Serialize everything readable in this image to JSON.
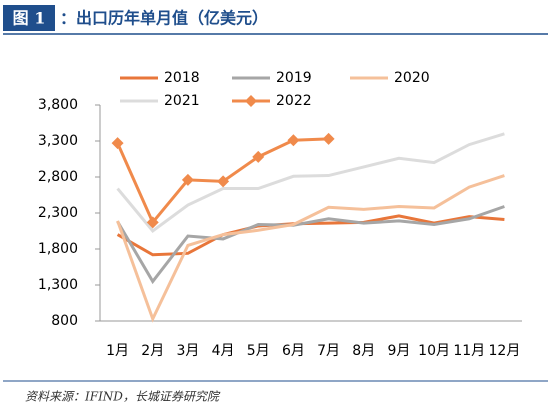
{
  "chart_data": {
    "type": "line",
    "title_label": "图 1",
    "title": "：出口历年单月值（亿美元）",
    "source": "资料来源：IFIND，长城证券研究院",
    "categories": [
      "1月",
      "2月",
      "3月",
      "4月",
      "5月",
      "6月",
      "7月",
      "8月",
      "9月",
      "10月",
      "11月",
      "12月"
    ],
    "series": [
      {
        "name": "2018",
        "color": "#e8763a",
        "values": [
          2000,
          1720,
          1740,
          2000,
          2120,
          2150,
          2160,
          2170,
          2260,
          2160,
          2250,
          2210
        ]
      },
      {
        "name": "2019",
        "color": "#a6a6a6",
        "values": [
          2180,
          1350,
          1980,
          1940,
          2140,
          2130,
          2220,
          2160,
          2190,
          2140,
          2220,
          2390
        ]
      },
      {
        "name": "2020",
        "color": "#f5c09a",
        "values": [
          2190,
          830,
          1850,
          2000,
          2060,
          2140,
          2380,
          2350,
          2390,
          2370,
          2660,
          2820
        ]
      },
      {
        "name": "2021",
        "color": "#dcdcdc",
        "values": [
          2640,
          2050,
          2410,
          2640,
          2640,
          2810,
          2820,
          2940,
          3060,
          3000,
          3250,
          3400
        ]
      },
      {
        "name": "2022",
        "color": "#f08a4b",
        "marker": "diamond",
        "values": [
          3270,
          2170,
          2760,
          2740,
          3080,
          3310,
          3330,
          null,
          null,
          null,
          null,
          null
        ]
      }
    ],
    "ylim": [
      800,
      3800
    ],
    "yticks": [
      800,
      {
        "value": 1300,
        "label": "1,300"
      },
      {
        "value": 1800,
        "label": "1,800"
      },
      {
        "value": 2300,
        "label": "2,300"
      },
      {
        "value": 2800,
        "label": "2,800"
      },
      {
        "value": 3300,
        "label": "3,300"
      },
      {
        "value": 3800,
        "label": "3,800"
      }
    ],
    "grid": false
  }
}
